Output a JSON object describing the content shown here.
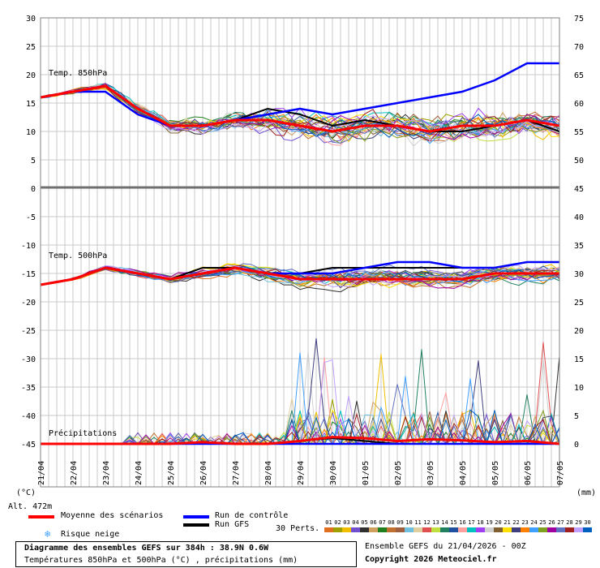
{
  "axes": {
    "left_unit": "(°C)",
    "right_unit": "(mm)",
    "left_upper_ticks": [
      "30",
      "25",
      "20",
      "15",
      "10",
      "5",
      "0"
    ],
    "left_lower_ticks": [
      "-5",
      "-10",
      "-15",
      "-20",
      "-25",
      "-30",
      "-35",
      "-40",
      "-45"
    ],
    "right_upper_ticks": [
      "75",
      "70",
      "65",
      "60",
      "55",
      "50",
      "45"
    ],
    "right_lower_ticks": [
      "40",
      "35",
      "30",
      "25",
      "20",
      "15",
      "10",
      "5",
      "0"
    ],
    "x_dates": [
      "21/04",
      "22/04",
      "23/04",
      "24/04",
      "25/04",
      "26/04",
      "27/04",
      "28/04",
      "29/04",
      "30/04",
      "01/05",
      "02/05",
      "03/05",
      "04/05",
      "05/05",
      "06/05",
      "07/05"
    ]
  },
  "panel_labels": {
    "t850": "Temp. 850hPa",
    "t500": "Temp. 500hPa",
    "precip": "Précipitations"
  },
  "altitude": "Alt. 472m",
  "legend": {
    "mean": "Moyenne des scénarios",
    "snow": "Risque neige",
    "control": "Run de contrôle",
    "gfs": "Run GFS",
    "perts": "30 Perts.",
    "pert_numbers": [
      "01",
      "02",
      "03",
      "04",
      "05",
      "06",
      "07",
      "08",
      "09",
      "10",
      "11",
      "12",
      "13",
      "14",
      "15",
      "16",
      "17",
      "18",
      "19",
      "20",
      "21",
      "22",
      "23",
      "24",
      "25",
      "26",
      "27",
      "28",
      "29",
      "30"
    ],
    "pert_colors": [
      "#e07020",
      "#a0a000",
      "#f0c000",
      "#7050d0",
      "#303030",
      "#d0a060",
      "#208020",
      "#c07030",
      "#a06040",
      "#70c0e0",
      "#e0d0a0",
      "#e05050",
      "#c0e040",
      "#208060",
      "#2050a0",
      "#ffa0a0",
      "#00c0c0",
      "#a040f0",
      "#d0d0d0",
      "#806030",
      "#ffe000",
      "#404080",
      "#ff8000",
      "#40a0ff",
      "#80a020",
      "#a000a0",
      "#6070c0",
      "#a02020",
      "#c0a0ff",
      "#0060c0"
    ]
  },
  "title": {
    "line1": "Diagramme des ensembles GEFS sur 384h : 38.9N 0.6W",
    "line2": "Températures 850hPa et 500hPa (°C) , précipitations (mm)"
  },
  "run_info": "Ensemble GEFS du 21/04/2026 - 00Z",
  "copyright": "Copyright 2026 Meteociel.fr",
  "colors": {
    "mean": "#ff0000",
    "control": "#0000ff",
    "gfs": "#000000",
    "grid": "#c8c8c8",
    "snow": "#40a0ff"
  },
  "chart_data": {
    "type": "line",
    "x": [
      "21/04",
      "22/04",
      "23/04",
      "24/04",
      "25/04",
      "26/04",
      "27/04",
      "28/04",
      "29/04",
      "30/04",
      "01/05",
      "02/05",
      "03/05",
      "04/05",
      "05/05",
      "06/05",
      "07/05"
    ],
    "panels": [
      {
        "name": "Temp. 850hPa",
        "unit": "°C",
        "ylim": [
          0,
          30
        ],
        "series": [
          {
            "name": "Moyenne des scénarios",
            "values": [
              16,
              17,
              18,
              14,
              11,
              11,
              12,
              12,
              11,
              10,
              11,
              11,
              10,
              11,
              11,
              12,
              11
            ]
          },
          {
            "name": "Run de contrôle",
            "values": [
              16,
              17,
              17,
              13,
              11,
              11,
              12,
              13,
              14,
              13,
              14,
              15,
              16,
              17,
              19,
              22,
              22
            ]
          },
          {
            "name": "Run GFS",
            "values": [
              16,
              17,
              17,
              13,
              11,
              11,
              12,
              14,
              13,
              11,
              12,
              11,
              10,
              10,
              11,
              12,
              10
            ]
          }
        ]
      },
      {
        "name": "Temp. 500hPa",
        "unit": "°C",
        "ylim": [
          -20,
          -10
        ],
        "series": [
          {
            "name": "Moyenne des scénarios",
            "values": [
              -17,
              -16,
              -14,
              -15,
              -16,
              -15,
              -14,
              -15,
              -16,
              -16,
              -16,
              -16,
              -16,
              -16,
              -15,
              -15,
              -15
            ]
          },
          {
            "name": "Run de contrôle",
            "values": [
              -17,
              -16,
              -14,
              -15,
              -16,
              -15,
              -14,
              -15,
              -15,
              -15,
              -14,
              -13,
              -13,
              -14,
              -14,
              -13,
              -13
            ]
          },
          {
            "name": "Run GFS",
            "values": [
              -17,
              -16,
              -14,
              -15,
              -16,
              -14,
              -14,
              -15,
              -15,
              -14,
              -14,
              -14,
              -14,
              -14,
              -14,
              -13,
              -13
            ]
          }
        ]
      },
      {
        "name": "Précipitations",
        "unit": "mm",
        "ylim": [
          0,
          40
        ],
        "series": [
          {
            "name": "Moyenne des scénarios",
            "values": [
              0,
              0,
              0,
              0,
              0,
              0.3,
              0,
              0,
              0.5,
              1.2,
              1.0,
              0.5,
              0.8,
              0.6,
              0.3,
              0.5,
              0
            ]
          },
          {
            "name": "Run de contrôle",
            "values": [
              0,
              0,
              0,
              0,
              0,
              0,
              0,
              0,
              0,
              0,
              0,
              0,
              0,
              0,
              0,
              0,
              0
            ]
          },
          {
            "name": "Run GFS",
            "values": [
              0,
              0,
              0,
              0,
              0,
              0,
              0,
              0,
              0.5,
              1,
              0.5,
              0,
              0,
              0,
              0,
              0,
              0
            ]
          }
        ]
      }
    ]
  }
}
